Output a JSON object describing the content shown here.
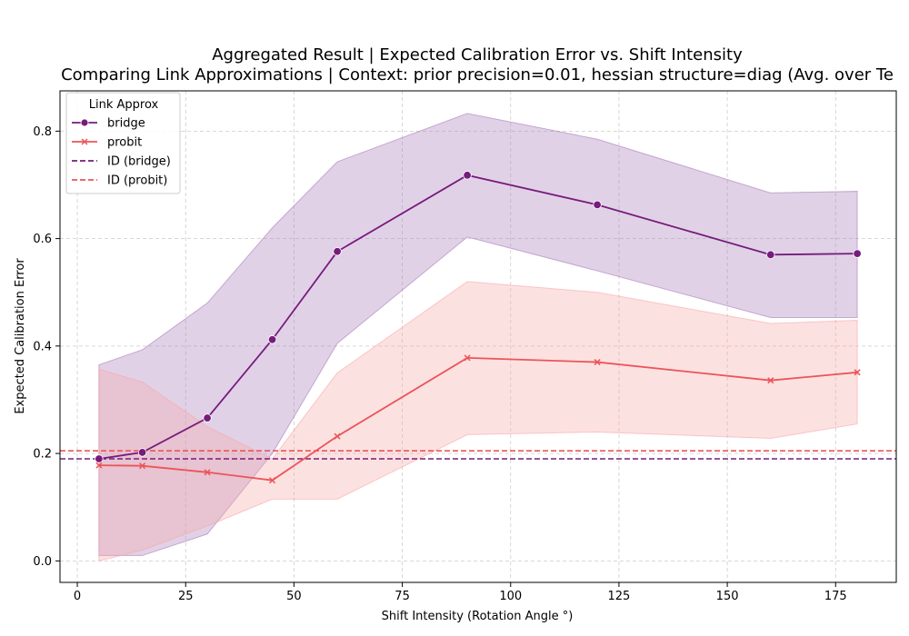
{
  "chart_data": {
    "type": "line",
    "title": "Aggregated Result | Expected Calibration Error vs. Shift Intensity",
    "subtitle": "Comparing Link Approximations | Context: prior precision=0.01, hessian structure=diag (Avg. over Te",
    "xlabel": "Shift Intensity (Rotation Angle °)",
    "ylabel": "Expected Calibration Error",
    "xlim": [
      -4,
      189
    ],
    "ylim": [
      -0.04,
      0.875
    ],
    "xticks": [
      0,
      25,
      50,
      75,
      100,
      125,
      150,
      175
    ],
    "xtick_labels": [
      "0",
      "25",
      "50",
      "75",
      "100",
      "125",
      "150",
      "175"
    ],
    "yticks": [
      0.0,
      0.2,
      0.4,
      0.6,
      0.8
    ],
    "ytick_labels": [
      "0.0",
      "0.2",
      "0.4",
      "0.6",
      "0.8"
    ],
    "grid": true,
    "legend": {
      "title": "Link Approx",
      "position": "top-left",
      "entries": [
        "bridge",
        "probit",
        "ID (bridge)",
        "ID (probit)"
      ]
    },
    "x": [
      5,
      15,
      30,
      45,
      60,
      90,
      120,
      160,
      180
    ],
    "series": [
      {
        "name": "bridge",
        "color": "#761c7b",
        "band_color": "#a97bb9",
        "marker": "circle",
        "values": [
          0.19,
          0.202,
          0.266,
          0.412,
          0.576,
          0.718,
          0.663,
          0.57,
          0.572
        ],
        "lower": [
          0.01,
          0.01,
          0.05,
          0.2,
          0.405,
          0.603,
          0.54,
          0.453,
          0.453
        ],
        "upper": [
          0.365,
          0.393,
          0.48,
          0.62,
          0.743,
          0.833,
          0.785,
          0.685,
          0.688
        ]
      },
      {
        "name": "probit",
        "color": "#ec5458",
        "band_color": "#f7a8a8",
        "marker": "x",
        "values": [
          0.178,
          0.177,
          0.165,
          0.15,
          0.232,
          0.378,
          0.37,
          0.336,
          0.351
        ],
        "lower": [
          0.0,
          0.02,
          0.065,
          0.115,
          0.115,
          0.235,
          0.24,
          0.228,
          0.255
        ],
        "upper": [
          0.357,
          0.333,
          0.25,
          0.19,
          0.35,
          0.52,
          0.5,
          0.442,
          0.448
        ]
      }
    ],
    "reference_lines": [
      {
        "name": "ID (bridge)",
        "y": 0.19,
        "color": "#761c7b",
        "style": "dashed"
      },
      {
        "name": "ID (probit)",
        "y": 0.205,
        "color": "#ec5458",
        "style": "dashed"
      }
    ]
  }
}
